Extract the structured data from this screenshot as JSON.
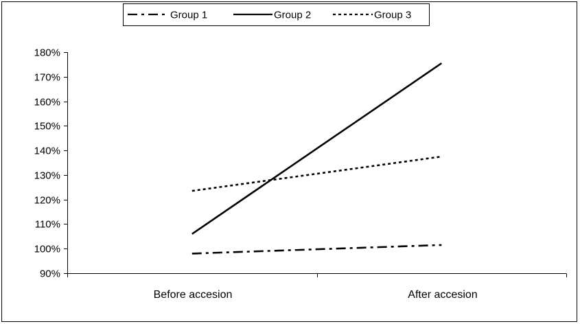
{
  "chart_data": {
    "type": "line",
    "categories": [
      "Before accesion",
      "After accesion"
    ],
    "series": [
      {
        "name": "Group 1",
        "values": [
          98,
          101.5
        ],
        "dash": "dashdot"
      },
      {
        "name": "Group 2",
        "values": [
          106,
          175.5
        ],
        "dash": "solid"
      },
      {
        "name": "Group 3",
        "values": [
          123.5,
          137.5
        ],
        "dash": "dotted"
      }
    ],
    "ylim": [
      90,
      180
    ],
    "yticks": [
      90,
      100,
      110,
      120,
      130,
      140,
      150,
      160,
      170,
      180
    ],
    "ytick_labels": [
      "90%",
      "100%",
      "110%",
      "120%",
      "130%",
      "140%",
      "150%",
      "160%",
      "170%",
      "180%"
    ],
    "title": "",
    "xlabel": "",
    "ylabel": "",
    "grid": false,
    "legend_position": "top",
    "line_color": "#000000"
  }
}
